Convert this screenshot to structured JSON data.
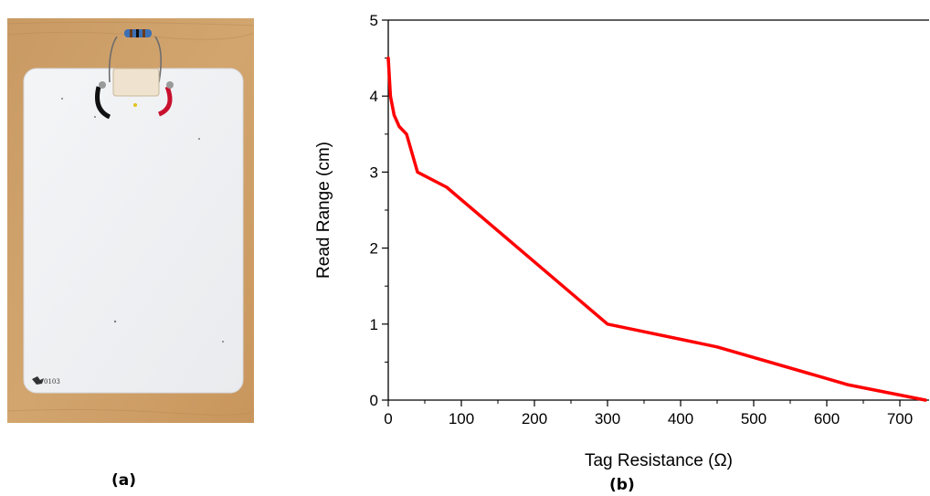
{
  "panels": {
    "a": {
      "label": "(a)",
      "card_text": "0103"
    },
    "b": {
      "label": "(b)"
    }
  },
  "chart_data": {
    "type": "line",
    "title": "",
    "xlabel": "Tag Resistance (Ω)",
    "ylabel": "Read Range (cm)",
    "xlim": [
      0,
      740
    ],
    "ylim": [
      0,
      5
    ],
    "xticks": [
      "0",
      "100",
      "200",
      "300",
      "400",
      "500",
      "600",
      "700"
    ],
    "yticks": [
      "0",
      "1",
      "2",
      "3",
      "4",
      "5"
    ],
    "grid": false,
    "series": [
      {
        "color": "#ff0000",
        "x": [
          0,
          3,
          8,
          15,
          25,
          40,
          80,
          300,
          450,
          630,
          735
        ],
        "y": [
          4.5,
          4.0,
          3.75,
          3.6,
          3.5,
          3.0,
          2.8,
          1.0,
          0.7,
          0.2,
          0.0
        ]
      }
    ]
  }
}
